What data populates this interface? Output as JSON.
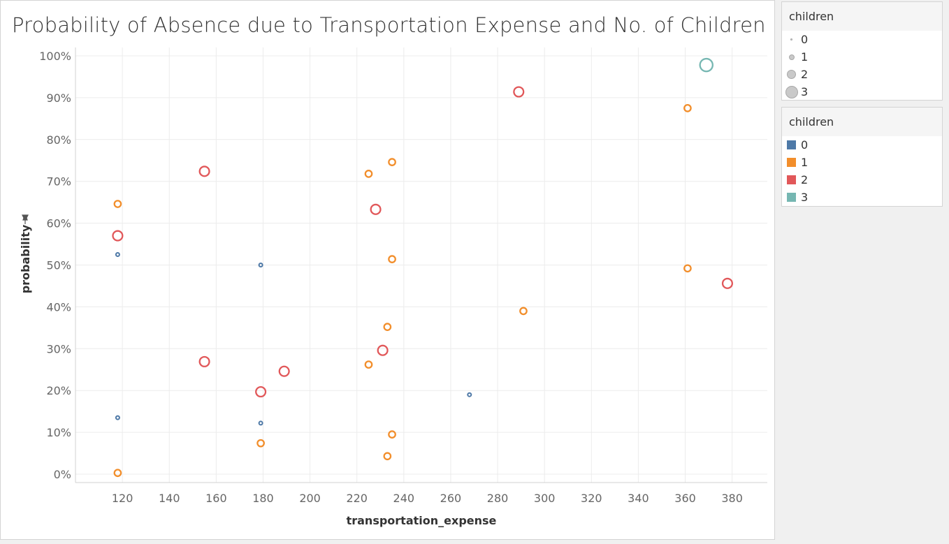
{
  "chart_data": {
    "type": "scatter",
    "title": "Probability of Absence due to Transportation Expense and No. of Children",
    "xlabel": "transportation_expense",
    "ylabel": "probability",
    "xlim": [
      100,
      395
    ],
    "ylim": [
      -2,
      102
    ],
    "x_ticks": [
      120,
      140,
      160,
      180,
      200,
      220,
      240,
      260,
      280,
      300,
      320,
      340,
      360,
      380
    ],
    "y_ticks": [
      0,
      10,
      20,
      30,
      40,
      50,
      60,
      70,
      80,
      90,
      100
    ],
    "y_tick_suffix": "%",
    "grid": true,
    "series": [
      {
        "name": "0",
        "color": "#4e79a7",
        "points": [
          [
            118,
            52.5
          ],
          [
            118,
            13.5
          ],
          [
            179,
            50
          ],
          [
            179,
            12.2
          ],
          [
            268,
            19
          ]
        ]
      },
      {
        "name": "1",
        "color": "#f28e2b",
        "points": [
          [
            118,
            64.6
          ],
          [
            118,
            0.3
          ],
          [
            179,
            7.4
          ],
          [
            225,
            71.8
          ],
          [
            225,
            26.2
          ],
          [
            233,
            35.2
          ],
          [
            233,
            4.3
          ],
          [
            235,
            74.6
          ],
          [
            235,
            51.4
          ],
          [
            235,
            9.5
          ],
          [
            291,
            39
          ],
          [
            361,
            87.5
          ],
          [
            361,
            49.2
          ]
        ]
      },
      {
        "name": "2",
        "color": "#e15759",
        "points": [
          [
            118,
            57
          ],
          [
            155,
            72.4
          ],
          [
            155,
            26.9
          ],
          [
            179,
            19.7
          ],
          [
            189,
            24.6
          ],
          [
            228,
            63.3
          ],
          [
            231,
            29.6
          ],
          [
            289,
            91.4
          ],
          [
            378,
            45.6
          ]
        ]
      },
      {
        "name": "3",
        "color": "#76b7b2",
        "points": [
          [
            369,
            97.8
          ]
        ]
      }
    ]
  },
  "legends": {
    "size": {
      "title": "children",
      "items": [
        {
          "label": "0",
          "size_value": 0
        },
        {
          "label": "1",
          "size_value": 1
        },
        {
          "label": "2",
          "size_value": 2
        },
        {
          "label": "3",
          "size_value": 3
        }
      ]
    },
    "color": {
      "title": "children",
      "items": [
        {
          "label": "0",
          "color": "#4e79a7"
        },
        {
          "label": "1",
          "color": "#f28e2b"
        },
        {
          "label": "2",
          "color": "#e15759"
        },
        {
          "label": "3",
          "color": "#76b7b2"
        }
      ]
    }
  }
}
